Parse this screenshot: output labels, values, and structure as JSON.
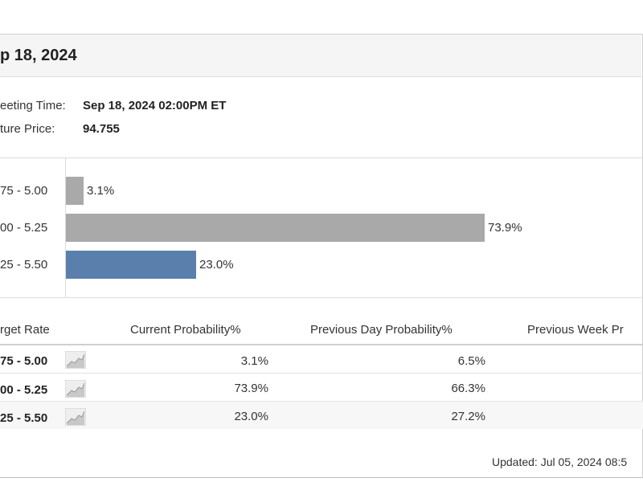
{
  "header": {
    "title": "p 18, 2024"
  },
  "info": [
    {
      "label": "eeting Time:",
      "value": "Sep 18, 2024 02:00PM ET"
    },
    {
      "label": "ture Price:",
      "value": "94.755"
    }
  ],
  "chart_data": {
    "type": "bar",
    "orientation": "horizontal",
    "categories": [
      "75 - 5.00",
      "00 - 5.25",
      "25 - 5.50"
    ],
    "values": [
      3.1,
      73.9,
      23.0
    ],
    "value_labels": [
      "3.1%",
      "73.9%",
      "23.0%"
    ],
    "colors": [
      "#a9a9a9",
      "#a9a9a9",
      "#5b7fad"
    ],
    "xlim": [
      0,
      100
    ],
    "title": "",
    "xlabel": "",
    "ylabel": ""
  },
  "table": {
    "headers": [
      "rget Rate",
      "Current Probability%",
      "Previous Day Probability%",
      "Previous Week Pr"
    ],
    "rows": [
      {
        "rate": "75 - 5.00",
        "current": "3.1%",
        "prev_day": "6.5%"
      },
      {
        "rate": "00 - 5.25",
        "current": "73.9%",
        "prev_day": "66.3%"
      },
      {
        "rate": "25 - 5.50",
        "current": "23.0%",
        "prev_day": "27.2%"
      }
    ],
    "sparkline_icon": "trend-chart-icon"
  },
  "footer": {
    "updated": "Updated: Jul 05, 2024 08:5"
  }
}
